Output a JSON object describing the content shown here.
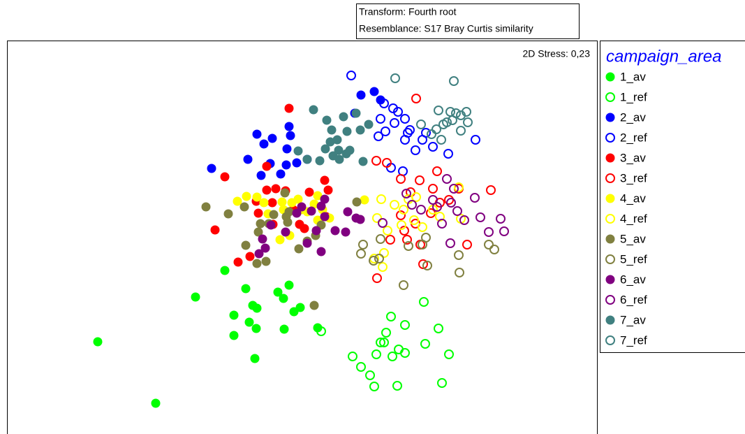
{
  "chart_data": {
    "type": "scatter",
    "transform": "Transform: Fourth root",
    "resemblance": "Resemblance: S17 Bray Curtis similarity",
    "annotation": "2D Stress: 0,23",
    "legend_title": "campaign_area",
    "xlim": [
      10,
      855
    ],
    "ylim": [
      621,
      58
    ],
    "series": [
      {
        "name": "1_av",
        "color": "#00ff00",
        "marker": "filled",
        "x": [
          140,
          223,
          280,
          322,
          352,
          335,
          362,
          368,
          357,
          398,
          414,
          406,
          430,
          421,
          407,
          367,
          335,
          365,
          455
        ],
        "values": [
          489,
          577,
          425,
          387,
          413,
          451,
          437,
          441,
          461,
          418,
          408,
          427,
          440,
          446,
          471,
          470,
          480,
          513,
          469
        ]
      },
      {
        "name": "1_ref",
        "color": "#00ff00",
        "marker": "open",
        "x": [
          460,
          505,
          517,
          530,
          536,
          569,
          539,
          545,
          553,
          560,
          580,
          571,
          580,
          562,
          607,
          628,
          609,
          643,
          633,
          550
        ],
        "values": [
          474,
          510,
          525,
          537,
          553,
          552,
          507,
          490,
          476,
          453,
          465,
          500,
          505,
          510,
          432,
          470,
          492,
          507,
          548,
          490
        ]
      },
      {
        "name": "2_av",
        "color": "#0000ff",
        "marker": "filled",
        "x": [
          303,
          355,
          368,
          378,
          390,
          414,
          416,
          411,
          410,
          425,
          440,
          374,
          387,
          402,
          517,
          536,
          545,
          508
        ],
        "values": [
          241,
          228,
          192,
          206,
          198,
          181,
          194,
          213,
          236,
          233,
          228,
          251,
          234,
          249,
          136,
          131,
          143,
          162
        ]
      },
      {
        "name": "2_ref",
        "color": "#0000ff",
        "marker": "open",
        "x": [
          503,
          550,
          563,
          570,
          545,
          552,
          565,
          580,
          587,
          580,
          595,
          584,
          610,
          620,
          605,
          642,
          681,
          560,
          577,
          542
        ],
        "values": [
          108,
          148,
          155,
          160,
          170,
          188,
          176,
          170,
          186,
          200,
          215,
          190,
          190,
          210,
          200,
          220,
          200,
          240,
          245,
          195
        ]
      },
      {
        "name": "3_av",
        "color": "#ff0000",
        "marker": "filled",
        "x": [
          414,
          322,
          308,
          341,
          367,
          382,
          395,
          409,
          390,
          370,
          420,
          436,
          443,
          470,
          465,
          382,
          358,
          391,
          429,
          467
        ],
        "values": [
          155,
          253,
          329,
          375,
          288,
          272,
          270,
          273,
          290,
          305,
          300,
          327,
          275,
          272,
          258,
          238,
          367,
          321,
          321,
          310
        ]
      },
      {
        "name": "3_ref",
        "color": "#ff0000",
        "marker": "open",
        "x": [
          596,
          539,
          554,
          574,
          601,
          626,
          588,
          620,
          657,
          703,
          630,
          643,
          617,
          595,
          579,
          583,
          602,
          559,
          606,
          669,
          540,
          574
        ],
        "values": [
          141,
          230,
          233,
          256,
          258,
          245,
          275,
          270,
          270,
          272,
          290,
          286,
          305,
          320,
          330,
          343,
          350,
          343,
          378,
          350,
          398,
          308
        ]
      },
      {
        "name": "4_av",
        "color": "#ffff00",
        "marker": "filled",
        "x": [
          340,
          353,
          368,
          378,
          404,
          406,
          418,
          427,
          432,
          440,
          450,
          455,
          462,
          472,
          401,
          415,
          384,
          522,
          455
        ],
        "values": [
          288,
          281,
          282,
          290,
          289,
          300,
          290,
          285,
          300,
          303,
          292,
          315,
          300,
          312,
          343,
          337,
          306,
          286,
          280
        ]
      },
      {
        "name": "4_ref",
        "color": "#ffff00",
        "marker": "open",
        "x": [
          546,
          565,
          540,
          578,
          575,
          555,
          585,
          593,
          605,
          620,
          630,
          657,
          660,
          536,
          548,
          596,
          550
        ],
        "values": [
          285,
          293,
          312,
          300,
          322,
          330,
          285,
          315,
          325,
          300,
          310,
          268,
          313,
          370,
          382,
          282,
          362
        ]
      },
      {
        "name": "5_av",
        "color": "#808040",
        "marker": "filled",
        "x": [
          295,
          327,
          350,
          373,
          352,
          370,
          385,
          392,
          410,
          412,
          440,
          428,
          460,
          452,
          414,
          381,
          368,
          450,
          511,
          408
        ],
        "values": [
          296,
          306,
          296,
          320,
          351,
          332,
          320,
          307,
          310,
          318,
          345,
          356,
          322,
          337,
          303,
          374,
          377,
          437,
          289,
          276
        ]
      },
      {
        "name": "5_ref",
        "color": "#808040",
        "marker": "open",
        "x": [
          520,
          517,
          543,
          535,
          585,
          605,
          612,
          578,
          657,
          700,
          708,
          610,
          658,
          545
        ],
        "values": [
          350,
          363,
          370,
          373,
          352,
          350,
          380,
          408,
          365,
          350,
          357,
          340,
          390,
          342
        ]
      },
      {
        "name": "6_av",
        "color": "#800080",
        "marker": "filled",
        "x": [
          376,
          380,
          388,
          409,
          425,
          432,
          446,
          460,
          465,
          453,
          460,
          440,
          480,
          495,
          516,
          498,
          371,
          465,
          510
        ],
        "values": [
          342,
          355,
          322,
          332,
          305,
          296,
          302,
          295,
          310,
          330,
          360,
          348,
          330,
          332,
          314,
          303,
          363,
          285,
          312
        ]
      },
      {
        "name": "6_ref",
        "color": "#800080",
        "marker": "open",
        "x": [
          548,
          582,
          590,
          620,
          626,
          640,
          646,
          655,
          665,
          680,
          688,
          700,
          717,
          722,
          633,
          645,
          650,
          603
        ],
        "values": [
          319,
          277,
          293,
          286,
          296,
          256,
          290,
          302,
          315,
          283,
          311,
          332,
          313,
          331,
          320,
          348,
          270,
          300
        ]
      },
      {
        "name": "7_av",
        "color": "#408080",
        "marker": "filled",
        "x": [
          449,
          468,
          475,
          483,
          492,
          497,
          510,
          516,
          528,
          427,
          440,
          458,
          466,
          477,
          486,
          496,
          501,
          520,
          485,
          473
        ],
        "values": [
          157,
          172,
          186,
          200,
          167,
          188,
          162,
          186,
          178,
          216,
          228,
          230,
          213,
          223,
          228,
          220,
          215,
          231,
          215,
          203
        ]
      },
      {
        "name": "7_ref",
        "color": "#408080",
        "marker": "open",
        "x": [
          566,
          650,
          628,
          645,
          653,
          660,
          668,
          640,
          625,
          618,
          632,
          660,
          635,
          670,
          603,
          648
        ],
        "values": [
          112,
          116,
          158,
          160,
          162,
          165,
          160,
          175,
          185,
          192,
          200,
          187,
          178,
          175,
          178,
          172
        ]
      }
    ]
  }
}
